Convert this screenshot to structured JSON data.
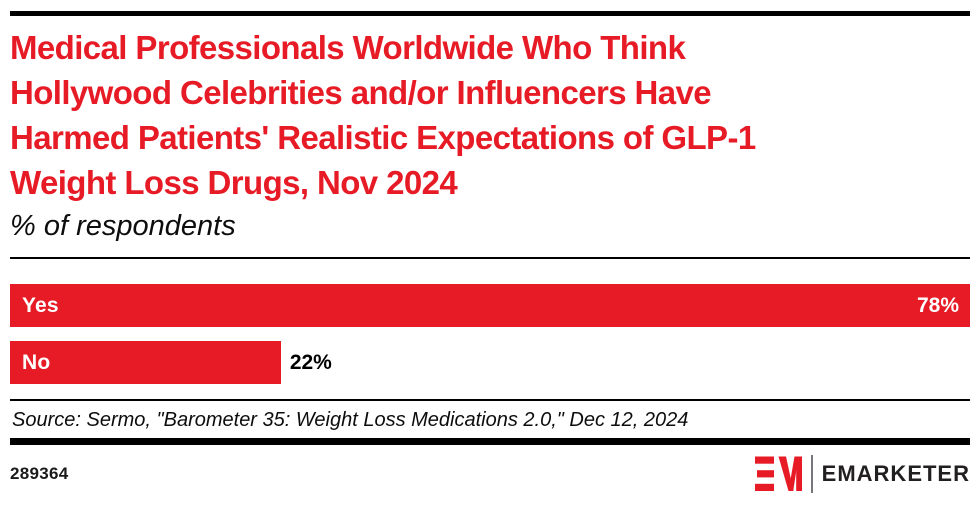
{
  "header": {
    "title": "Medical Professionals Worldwide Who Think Hollywood Celebrities and/or Influencers Have Harmed Patients' Realistic Expectations of GLP-1 Weight Loss Drugs, Nov 2024",
    "title_lines": [
      "Medical Professionals Worldwide Who Think",
      "Hollywood Celebrities and/or Influencers Have",
      "Harmed Patients' Realistic Expectations of GLP-1",
      "Weight Loss Drugs, Nov 2024"
    ],
    "subtitle": "% of respondents"
  },
  "chart_data": {
    "type": "bar",
    "orientation": "horizontal",
    "title": "Medical Professionals Worldwide Who Think Hollywood Celebrities and/or Influencers Have Harmed Patients' Realistic Expectations of GLP-1 Weight Loss Drugs, Nov 2024",
    "subtitle": "% of respondents",
    "categories": [
      "Yes",
      "No"
    ],
    "values": [
      78,
      22
    ],
    "value_labels": [
      "78%",
      "22%"
    ],
    "unit": "%",
    "xlim": [
      0,
      78
    ],
    "grid": false,
    "legend": false,
    "bar_color": "#e71b26",
    "category_label_position": "inside-left",
    "value_label_rule": "inside-right if bar is longest, outside-right otherwise"
  },
  "footer": {
    "source": "Source: Sermo, \"Barometer 35: Weight Loss Medications 2.0,\" Dec 12, 2024",
    "chart_id": "289364",
    "logo": {
      "monogram": "EM",
      "wordmark": "EMARKETER"
    }
  },
  "colors": {
    "accent_red": "#e71b26",
    "text_black": "#0d0d0d",
    "rule_black": "#000000",
    "logo_divider_gray": "#77787b"
  }
}
